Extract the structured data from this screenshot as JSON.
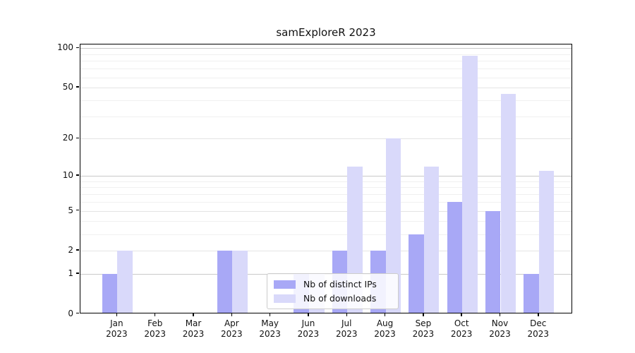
{
  "title": "samExploreR 2023",
  "chart_data": {
    "type": "bar",
    "title": "samExploreR 2023",
    "categories": [
      "Jan",
      "Feb",
      "Mar",
      "Apr",
      "May",
      "Jun",
      "Jul",
      "Aug",
      "Sep",
      "Oct",
      "Nov",
      "Dec"
    ],
    "category_year": "2023",
    "series": [
      {
        "name": "Nb of distinct IPs",
        "color": "#a8a8f6",
        "values": [
          1,
          0,
          0,
          2,
          0,
          1,
          2,
          2,
          3,
          6,
          5,
          1
        ]
      },
      {
        "name": "Nb of downloads",
        "color": "#d9d9fa",
        "values": [
          2,
          0,
          0,
          2,
          0,
          1,
          12,
          20,
          12,
          88,
          45,
          11
        ]
      }
    ],
    "yscale": "log1p",
    "ylim": [
      0,
      107
    ],
    "yticks": [
      0,
      1,
      2,
      5,
      10,
      20,
      50,
      100
    ],
    "yticks_minor": [
      3,
      4,
      6,
      7,
      8,
      9,
      30,
      40,
      60,
      70,
      80,
      90
    ],
    "grid": "horizontal",
    "legend_position": "lower center"
  },
  "colors": {
    "bar_dark": "#a8a8f6",
    "bar_light": "#d9d9fa",
    "grid_strong": "#c9c9c9",
    "grid_weak": "#e4e4e4",
    "grid_minor": "#f0f0f0",
    "spine": "#000000",
    "background": "#ffffff"
  }
}
